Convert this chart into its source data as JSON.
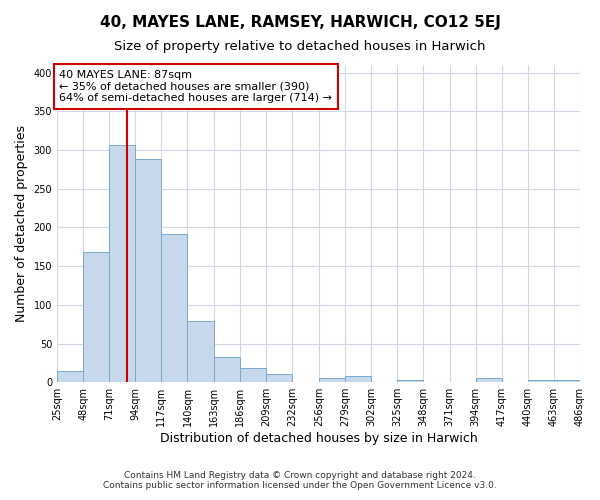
{
  "title": "40, MAYES LANE, RAMSEY, HARWICH, CO12 5EJ",
  "subtitle": "Size of property relative to detached houses in Harwich",
  "xlabel": "Distribution of detached houses by size in Harwich",
  "ylabel": "Number of detached properties",
  "footer_lines": [
    "Contains HM Land Registry data © Crown copyright and database right 2024.",
    "Contains public sector information licensed under the Open Government Licence v3.0."
  ],
  "bin_edges": [
    25,
    48,
    71,
    94,
    117,
    140,
    163,
    186,
    209,
    232,
    256,
    279,
    302,
    325,
    348,
    371,
    394,
    417,
    440,
    463,
    486
  ],
  "bin_labels": [
    "25sqm",
    "48sqm",
    "71sqm",
    "94sqm",
    "117sqm",
    "140sqm",
    "163sqm",
    "186sqm",
    "209sqm",
    "232sqm",
    "256sqm",
    "279sqm",
    "302sqm",
    "325sqm",
    "348sqm",
    "371sqm",
    "394sqm",
    "417sqm",
    "440sqm",
    "463sqm",
    "486sqm"
  ],
  "bar_heights": [
    15,
    168,
    306,
    289,
    191,
    79,
    32,
    19,
    10,
    0,
    5,
    8,
    0,
    3,
    0,
    0,
    5,
    0,
    3,
    3
  ],
  "bar_color": "#c8d8ec",
  "bar_edge_color": "#7ba8cc",
  "vline_x": 87,
  "vline_color": "#cc0000",
  "annotation_text": "40 MAYES LANE: 87sqm\n← 35% of detached houses are smaller (390)\n64% of semi-detached houses are larger (714) →",
  "annotation_box_color": "#ffffff",
  "annotation_box_edge_color": "#cc0000",
  "ylim": [
    0,
    410
  ],
  "yticks": [
    0,
    50,
    100,
    150,
    200,
    250,
    300,
    350,
    400
  ],
  "plot_bg_color": "#ffffff",
  "fig_bg_color": "#ffffff",
  "grid_color": "#d0d8e8",
  "title_fontsize": 11,
  "subtitle_fontsize": 9.5,
  "axis_label_fontsize": 9,
  "tick_fontsize": 7,
  "annotation_fontsize": 8,
  "footer_fontsize": 6.5
}
